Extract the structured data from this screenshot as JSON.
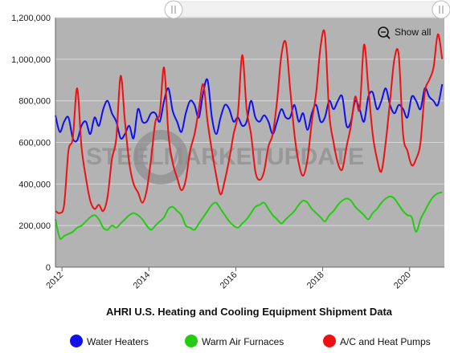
{
  "chart_data": {
    "type": "line",
    "title": "AHRI U.S. Heating and Cooling Equipment Shipment Data",
    "xlabel": "",
    "ylabel": "",
    "xlim": [
      2011.85,
      2020.8
    ],
    "ylim": [
      0,
      1200000
    ],
    "x_ticks": [
      2012,
      2014,
      2016,
      2018,
      2020
    ],
    "x_tick_labels": [
      "2012",
      "2014",
      "2016",
      "2018",
      "2020"
    ],
    "y_ticks": [
      0,
      200000,
      400000,
      600000,
      800000,
      1000000,
      1200000
    ],
    "y_tick_labels": [
      "0",
      "200,000",
      "400,000",
      "600,000",
      "800,000",
      "1,000,000",
      "1,200,000"
    ],
    "grid": true,
    "legend_position": "bottom",
    "plot_background": "#b3b3b3",
    "watermark": "STEELMARKETUPDATE",
    "show_all_label": "Show all",
    "series": [
      {
        "name": "Water Heaters",
        "color": "#1010ee",
        "x": [
          2011.85,
          2011.95,
          2012.05,
          2012.15,
          2012.25,
          2012.35,
          2012.45,
          2012.55,
          2012.65,
          2012.75,
          2012.85,
          2012.95,
          2013.05,
          2013.15,
          2013.25,
          2013.35,
          2013.45,
          2013.55,
          2013.65,
          2013.75,
          2013.85,
          2013.95,
          2014.05,
          2014.15,
          2014.25,
          2014.35,
          2014.45,
          2014.55,
          2014.65,
          2014.75,
          2014.85,
          2014.95,
          2015.05,
          2015.15,
          2015.25,
          2015.35,
          2015.45,
          2015.55,
          2015.65,
          2015.75,
          2015.85,
          2015.95,
          2016.05,
          2016.15,
          2016.25,
          2016.35,
          2016.45,
          2016.55,
          2016.65,
          2016.75,
          2016.85,
          2016.95,
          2017.05,
          2017.15,
          2017.25,
          2017.35,
          2017.45,
          2017.55,
          2017.65,
          2017.75,
          2017.85,
          2017.95,
          2018.05,
          2018.15,
          2018.25,
          2018.35,
          2018.45,
          2018.55,
          2018.65,
          2018.75,
          2018.85,
          2018.95,
          2019.05,
          2019.15,
          2019.25,
          2019.35,
          2019.45,
          2019.55,
          2019.65,
          2019.75,
          2019.85,
          2019.95,
          2020.05,
          2020.15,
          2020.25,
          2020.35,
          2020.45,
          2020.55,
          2020.65,
          2020.75
        ],
        "values": [
          730000,
          650000,
          700000,
          720000,
          620000,
          610000,
          680000,
          700000,
          640000,
          720000,
          680000,
          760000,
          800000,
          740000,
          700000,
          620000,
          640000,
          680000,
          620000,
          760000,
          700000,
          700000,
          740000,
          740000,
          700000,
          800000,
          860000,
          750000,
          700000,
          650000,
          740000,
          800000,
          780000,
          720000,
          840000,
          900000,
          720000,
          640000,
          720000,
          780000,
          760000,
          700000,
          720000,
          680000,
          700000,
          800000,
          720000,
          700000,
          730000,
          700000,
          640000,
          700000,
          760000,
          720000,
          720000,
          780000,
          700000,
          740000,
          660000,
          740000,
          780000,
          700000,
          720000,
          800000,
          760000,
          800000,
          820000,
          680000,
          700000,
          800000,
          760000,
          700000,
          820000,
          840000,
          760000,
          800000,
          860000,
          780000,
          740000,
          780000,
          760000,
          720000,
          820000,
          800000,
          760000,
          860000,
          820000,
          800000,
          780000,
          880000
        ]
      },
      {
        "name": "Warm Air Furnaces",
        "color": "#22cc11",
        "x": [
          2011.85,
          2011.95,
          2012.05,
          2012.15,
          2012.25,
          2012.35,
          2012.45,
          2012.55,
          2012.65,
          2012.75,
          2012.85,
          2012.95,
          2013.05,
          2013.15,
          2013.25,
          2013.35,
          2013.45,
          2013.55,
          2013.65,
          2013.75,
          2013.85,
          2013.95,
          2014.05,
          2014.15,
          2014.25,
          2014.35,
          2014.45,
          2014.55,
          2014.65,
          2014.75,
          2014.85,
          2014.95,
          2015.05,
          2015.15,
          2015.25,
          2015.35,
          2015.45,
          2015.55,
          2015.65,
          2015.75,
          2015.85,
          2015.95,
          2016.05,
          2016.15,
          2016.25,
          2016.35,
          2016.45,
          2016.55,
          2016.65,
          2016.75,
          2016.85,
          2016.95,
          2017.05,
          2017.15,
          2017.25,
          2017.35,
          2017.45,
          2017.55,
          2017.65,
          2017.75,
          2017.85,
          2017.95,
          2018.05,
          2018.15,
          2018.25,
          2018.35,
          2018.45,
          2018.55,
          2018.65,
          2018.75,
          2018.85,
          2018.95,
          2019.05,
          2019.15,
          2019.25,
          2019.35,
          2019.45,
          2019.55,
          2019.65,
          2019.75,
          2019.85,
          2019.95,
          2020.05,
          2020.15,
          2020.25,
          2020.35,
          2020.45,
          2020.55,
          2020.65,
          2020.75
        ],
        "values": [
          230000,
          140000,
          150000,
          160000,
          170000,
          190000,
          200000,
          220000,
          240000,
          250000,
          230000,
          190000,
          180000,
          200000,
          190000,
          210000,
          230000,
          250000,
          260000,
          250000,
          230000,
          200000,
          180000,
          200000,
          220000,
          240000,
          280000,
          290000,
          270000,
          250000,
          200000,
          190000,
          180000,
          210000,
          240000,
          270000,
          300000,
          310000,
          280000,
          250000,
          220000,
          200000,
          190000,
          210000,
          230000,
          260000,
          290000,
          300000,
          310000,
          280000,
          250000,
          230000,
          210000,
          230000,
          250000,
          270000,
          300000,
          320000,
          310000,
          280000,
          260000,
          240000,
          220000,
          250000,
          270000,
          300000,
          320000,
          330000,
          320000,
          290000,
          270000,
          250000,
          230000,
          260000,
          280000,
          310000,
          330000,
          340000,
          330000,
          300000,
          270000,
          250000,
          240000,
          170000,
          230000,
          270000,
          310000,
          340000,
          355000,
          360000
        ]
      },
      {
        "name": "A/C and Heat Pumps",
        "color": "#ee1111",
        "x": [
          2011.85,
          2011.95,
          2012.05,
          2012.15,
          2012.25,
          2012.35,
          2012.45,
          2012.55,
          2012.65,
          2012.75,
          2012.85,
          2012.95,
          2013.05,
          2013.15,
          2013.25,
          2013.35,
          2013.45,
          2013.55,
          2013.65,
          2013.75,
          2013.85,
          2013.95,
          2014.05,
          2014.15,
          2014.25,
          2014.35,
          2014.45,
          2014.55,
          2014.65,
          2014.75,
          2014.85,
          2014.95,
          2015.05,
          2015.15,
          2015.25,
          2015.35,
          2015.45,
          2015.55,
          2015.65,
          2015.75,
          2015.85,
          2015.95,
          2016.05,
          2016.15,
          2016.25,
          2016.35,
          2016.45,
          2016.55,
          2016.65,
          2016.75,
          2016.85,
          2016.95,
          2017.05,
          2017.15,
          2017.25,
          2017.35,
          2017.45,
          2017.55,
          2017.65,
          2017.75,
          2017.85,
          2017.95,
          2018.05,
          2018.15,
          2018.25,
          2018.35,
          2018.45,
          2018.55,
          2018.65,
          2018.75,
          2018.85,
          2018.95,
          2019.05,
          2019.15,
          2019.25,
          2019.35,
          2019.45,
          2019.55,
          2019.65,
          2019.75,
          2019.85,
          2019.95,
          2020.05,
          2020.15,
          2020.25,
          2020.35,
          2020.45,
          2020.55,
          2020.65,
          2020.75
        ],
        "values": [
          270000,
          260000,
          300000,
          560000,
          620000,
          860000,
          580000,
          430000,
          320000,
          280000,
          300000,
          270000,
          340000,
          520000,
          620000,
          920000,
          700000,
          500000,
          400000,
          360000,
          310000,
          370000,
          520000,
          700000,
          740000,
          960000,
          640000,
          500000,
          430000,
          370000,
          420000,
          560000,
          640000,
          760000,
          880000,
          700000,
          560000,
          440000,
          350000,
          420000,
          520000,
          640000,
          740000,
          1020000,
          760000,
          640000,
          460000,
          420000,
          460000,
          580000,
          640000,
          800000,
          1020000,
          1080000,
          860000,
          640000,
          500000,
          440000,
          520000,
          700000,
          840000,
          1060000,
          1120000,
          740000,
          600000,
          500000,
          470000,
          580000,
          680000,
          820000,
          760000,
          1070000,
          860000,
          640000,
          520000,
          460000,
          600000,
          800000,
          1000000,
          1020000,
          640000,
          560000,
          490000,
          520000,
          600000,
          840000,
          900000,
          960000,
          1120000,
          1000000
        ]
      }
    ]
  }
}
